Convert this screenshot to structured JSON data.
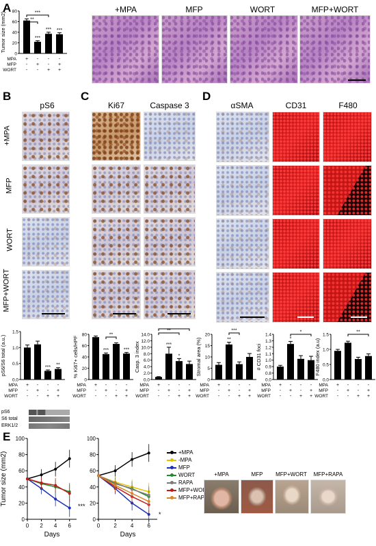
{
  "panels": {
    "A": "A",
    "B": "B",
    "C": "C",
    "D": "D",
    "E": "E"
  },
  "condition_labels": [
    "+MPA",
    "MFP",
    "WORT",
    "MFP+WORT"
  ],
  "panelA": {
    "image_titles": [
      "+MPA",
      "MFP",
      "WORT",
      "MFP+WORT"
    ],
    "chart": {
      "ylabel": "Tumor size (mm2)",
      "yticks": [
        "0",
        "20",
        "40",
        "60",
        "80"
      ],
      "values": [
        62,
        22,
        37,
        36
      ],
      "errors": [
        3,
        2,
        3,
        3
      ],
      "bar_marks": [
        "",
        "***",
        "***",
        "***"
      ],
      "brackets": [
        "***",
        "**"
      ],
      "table": {
        "rows": [
          "MPA",
          "MFP",
          "WORT"
        ],
        "cols": [
          [
            "+",
            "-",
            "-",
            "-"
          ],
          [
            "-",
            "+",
            "-",
            "+"
          ],
          [
            "-",
            "-",
            "+",
            "+"
          ]
        ]
      }
    }
  },
  "panelB": {
    "title": "pS6",
    "row_labels": [
      "+MPA",
      "MFP",
      "WORT",
      "MFP+WORT"
    ],
    "chart": {
      "ylabel": "pS6/S6 total (a.u.)",
      "yticks": [
        "0.0",
        "0.5",
        "1.0",
        "1.5"
      ],
      "values": [
        1.0,
        1.1,
        0.27,
        0.33
      ],
      "errors": [
        0.08,
        0.1,
        0.03,
        0.04
      ],
      "bar_marks": [
        "",
        "",
        "***",
        "**"
      ],
      "table": {
        "rows": [
          "MPA",
          "MFP",
          "WORT"
        ],
        "cols": [
          [
            "+",
            "-",
            "-",
            "-"
          ],
          [
            "-",
            "+",
            "-",
            "+"
          ],
          [
            "-",
            "-",
            "+",
            "+"
          ]
        ]
      }
    },
    "blots": [
      "pS6",
      "S6 total",
      "ERK1/2"
    ]
  },
  "panelC": {
    "titles": [
      "Ki67",
      "Caspase 3"
    ],
    "ki67": {
      "ylabel": "% Ki67+ cells/HPF",
      "yticks": [
        "0",
        "20",
        "40",
        "60",
        "80"
      ],
      "values": [
        75,
        45,
        63,
        46
      ],
      "errors": [
        2,
        2,
        2,
        2
      ],
      "bar_marks": [
        "",
        "***",
        "",
        "***"
      ],
      "brackets": [
        "**"
      ],
      "table": {
        "rows": [
          "MPA",
          "MFP",
          "WORT"
        ],
        "cols": [
          [
            "+",
            "-",
            "-",
            "-"
          ],
          [
            "-",
            "+",
            "-",
            "+"
          ],
          [
            "-",
            "-",
            "+",
            "+"
          ]
        ]
      }
    },
    "casp": {
      "ylabel": "Casp. 3 index",
      "yticks": [
        "0.0",
        "2.0",
        "4.0",
        "6.0",
        "8.0",
        "10.0",
        "12.0",
        "14.0"
      ],
      "values": [
        0.8,
        8.0,
        5.7,
        4.8
      ],
      "errors": [
        0.1,
        2.0,
        0.8,
        0.9
      ],
      "bar_marks": [
        "",
        "***",
        "*",
        ""
      ],
      "brackets": [
        "**",
        "**"
      ],
      "table": {
        "rows": [
          "MPA",
          "MFP",
          "WORT"
        ],
        "cols": [
          [
            "+",
            "-",
            "-",
            "-"
          ],
          [
            "-",
            "+",
            "-",
            "+"
          ],
          [
            "-",
            "-",
            "+",
            "+"
          ]
        ]
      }
    }
  },
  "panelD": {
    "titles": [
      "αSMA",
      "CD31",
      "F480"
    ],
    "stromal": {
      "ylabel": "Stromal area (%)",
      "yticks": [
        "0",
        "5",
        "10",
        "15",
        "20"
      ],
      "values": [
        6.5,
        15.5,
        6.8,
        10
      ],
      "errors": [
        1,
        1,
        1,
        1.5
      ],
      "bar_marks": [
        "",
        "**",
        "",
        ""
      ],
      "brackets": [
        "***"
      ],
      "table": {
        "rows": [
          "MPA",
          "MFP",
          "WORT"
        ],
        "cols": [
          [
            "+",
            "-",
            "-",
            "-"
          ],
          [
            "-",
            "+",
            "-",
            "+"
          ],
          [
            "-",
            "-",
            "+",
            "+"
          ]
        ]
      }
    },
    "cd31": {
      "ylabel": "# CD31 foci",
      "yticks": [
        "0.0",
        "0.8",
        "0.9",
        "1.0",
        "1.1",
        "1.2",
        "1.3",
        "1.4"
      ],
      "values": [
        0.9,
        1.25,
        1.02,
        1.0
      ],
      "errors": [
        0.02,
        0.04,
        0.05,
        0.06
      ],
      "bar_marks": [
        "",
        "*",
        "",
        ""
      ],
      "brackets": [
        "*"
      ],
      "table": {
        "rows": [
          "MPA",
          "MFP",
          "WORT"
        ],
        "cols": [
          [
            "+",
            "-",
            "-",
            "-"
          ],
          [
            "-",
            "+",
            "-",
            "+"
          ],
          [
            "-",
            "-",
            "+",
            "+"
          ]
        ]
      }
    },
    "f480": {
      "ylabel": "F480 index (a.u)",
      "yticks": [
        "0.0",
        "0.5",
        "1.0",
        "1.5"
      ],
      "values": [
        0.95,
        1.22,
        0.68,
        0.78
      ],
      "errors": [
        0.05,
        0.05,
        0.06,
        0.07
      ],
      "bar_marks": [
        "",
        "",
        "",
        ""
      ],
      "brackets": [
        "**"
      ],
      "table": {
        "rows": [
          "MPA",
          "MFP",
          "WORT"
        ],
        "cols": [
          [
            "+",
            "-",
            "-",
            "-"
          ],
          [
            "-",
            "+",
            "-",
            "+"
          ],
          [
            "-",
            "-",
            "+",
            "+"
          ]
        ]
      }
    }
  },
  "panelE": {
    "ylabel": "Tumor size (mm2)",
    "xlabel": "Days",
    "left_yticks": [
      "0",
      "20",
      "40",
      "60",
      "80",
      "100"
    ],
    "right_yticks": [
      "0",
      "20",
      "40",
      "60",
      "80",
      "100"
    ],
    "xticks": [
      "0",
      "2",
      "4",
      "6"
    ],
    "left_sig": "***",
    "right_sig": "*",
    "legend": [
      {
        "name": "+MPA",
        "color": "#000000"
      },
      {
        "name": "-MPA",
        "color": "#e6c000"
      },
      {
        "name": "MFP",
        "color": "#1a2fb5"
      },
      {
        "name": "WORT",
        "color": "#1f8a2e"
      },
      {
        "name": "RAPA",
        "color": "#7a7a7a"
      },
      {
        "name": "MFP+WORT",
        "color": "#c01a1a"
      },
      {
        "name": "MFP+RAPA",
        "color": "#d9832a"
      }
    ],
    "gut_labels": [
      "+MPA",
      "MFP",
      "MFP+WORT",
      "MFP+RAPA"
    ]
  },
  "chart_data": [
    {
      "type": "bar",
      "title": "",
      "ylabel": "Tumor size (mm2)",
      "categories": [
        "+MPA",
        "MFP",
        "WORT",
        "MFP+WORT"
      ],
      "values": [
        62,
        22,
        37,
        36
      ],
      "ylim": [
        0,
        80
      ]
    },
    {
      "type": "bar",
      "ylabel": "pS6/S6 total (a.u.)",
      "categories": [
        "+MPA",
        "MFP",
        "WORT",
        "MFP+WORT"
      ],
      "values": [
        1.0,
        1.1,
        0.27,
        0.33
      ],
      "ylim": [
        0,
        1.5
      ]
    },
    {
      "type": "bar",
      "ylabel": "% Ki67+ cells/HPF",
      "categories": [
        "+MPA",
        "MFP",
        "WORT",
        "MFP+WORT"
      ],
      "values": [
        75,
        45,
        63,
        46
      ],
      "ylim": [
        0,
        80
      ]
    },
    {
      "type": "bar",
      "ylabel": "Casp. 3 index",
      "categories": [
        "+MPA",
        "MFP",
        "WORT",
        "MFP+WORT"
      ],
      "values": [
        0.8,
        8.0,
        5.7,
        4.8
      ],
      "ylim": [
        0,
        14
      ]
    },
    {
      "type": "bar",
      "ylabel": "Stromal area (%)",
      "categories": [
        "+MPA",
        "MFP",
        "WORT",
        "MFP+WORT"
      ],
      "values": [
        6.5,
        15.5,
        6.8,
        10
      ],
      "ylim": [
        0,
        20
      ]
    },
    {
      "type": "bar",
      "ylabel": "# CD31 foci",
      "categories": [
        "+MPA",
        "MFP",
        "WORT",
        "MFP+WORT"
      ],
      "values": [
        0.9,
        1.25,
        1.02,
        1.0
      ],
      "ylim": [
        0.8,
        1.4
      ]
    },
    {
      "type": "bar",
      "ylabel": "F480 index (a.u)",
      "categories": [
        "+MPA",
        "MFP",
        "WORT",
        "MFP+WORT"
      ],
      "values": [
        0.95,
        1.22,
        0.68,
        0.78
      ],
      "ylim": [
        0,
        1.5
      ]
    },
    {
      "type": "line",
      "ylabel": "Tumor size (mm2)",
      "xlabel": "Days",
      "x": [
        0,
        2,
        4,
        6
      ],
      "ylim": [
        0,
        100
      ],
      "series": [
        {
          "name": "+MPA",
          "values": [
            50,
            55,
            62,
            75
          ]
        },
        {
          "name": "MFP",
          "values": [
            50,
            38,
            25,
            14
          ]
        },
        {
          "name": "WORT",
          "values": [
            50,
            44,
            40,
            34
          ]
        },
        {
          "name": "MFP+WORT",
          "values": [
            50,
            45,
            42,
            32
          ]
        }
      ]
    },
    {
      "type": "line",
      "ylabel": "",
      "xlabel": "Days",
      "x": [
        0,
        2,
        4,
        6
      ],
      "ylim": [
        0,
        100
      ],
      "series": [
        {
          "name": "+MPA",
          "values": [
            54,
            60,
            74,
            82
          ]
        },
        {
          "name": "-MPA",
          "values": [
            54,
            46,
            40,
            34
          ]
        },
        {
          "name": "MFP",
          "values": [
            54,
            38,
            20,
            6
          ]
        },
        {
          "name": "WORT",
          "values": [
            54,
            44,
            38,
            28
          ]
        },
        {
          "name": "RAPA",
          "values": [
            54,
            45,
            37,
            30
          ]
        },
        {
          "name": "MFP+WORT",
          "values": [
            54,
            40,
            28,
            18
          ]
        },
        {
          "name": "MFP+RAPA",
          "values": [
            54,
            42,
            32,
            22
          ]
        }
      ]
    }
  ]
}
